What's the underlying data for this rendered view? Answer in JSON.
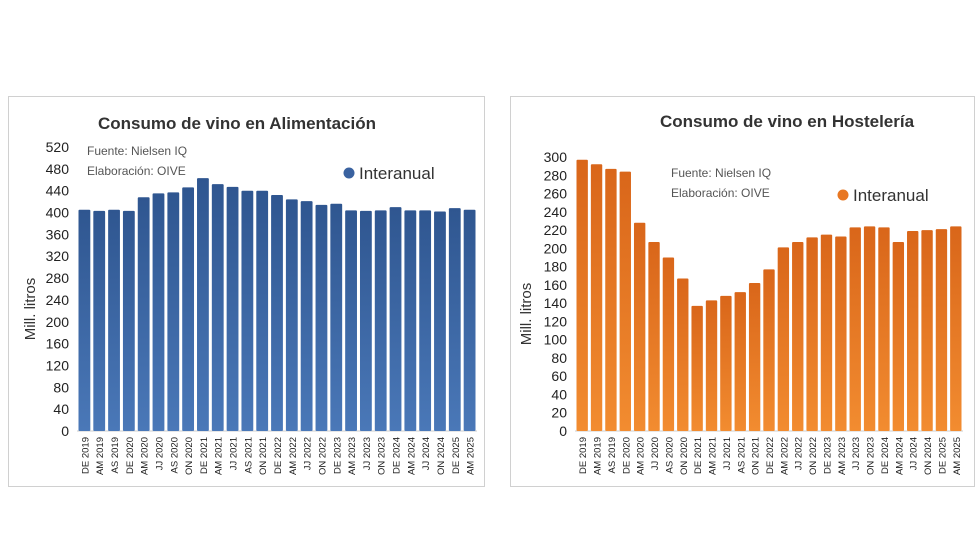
{
  "chart_data": [
    {
      "type": "bar",
      "title": "Consumo de vino en Alimentación",
      "ylabel": "Mill. litros",
      "source": "Fuente: Nielsen IQ",
      "author": "Elaboración: OIVE",
      "legend": "Interanual",
      "legend_position": "top-right",
      "color": "#3a62a0",
      "ylim": [
        0,
        520
      ],
      "yticks": [
        0,
        40,
        80,
        120,
        160,
        200,
        240,
        280,
        320,
        360,
        400,
        440,
        480,
        520
      ],
      "categories": [
        "DE 2019",
        "AM 2019",
        "AS 2019",
        "DE 2020",
        "AM 2020",
        "JJ 2020",
        "AS 2020",
        "ON 2020",
        "DE 2021",
        "AM 2021",
        "JJ 2021",
        "AS 2021",
        "ON 2021",
        "DE 2022",
        "AM 2022",
        "JJ 2022",
        "ON 2022",
        "DE 2023",
        "AM 2023",
        "JJ 2023",
        "ON 2023",
        "DE 2024",
        "AM 2024",
        "JJ 2024",
        "ON 2024",
        "DE 2025",
        "AM 2025"
      ],
      "values": [
        405,
        403,
        405,
        403,
        428,
        435,
        437,
        446,
        463,
        452,
        447,
        440,
        440,
        432,
        424,
        421,
        414,
        416,
        404,
        403,
        404,
        410,
        404,
        404,
        402,
        408,
        405
      ]
    },
    {
      "type": "bar",
      "title": "Consumo de vino en Hostelería",
      "ylabel": "Mill. litros",
      "source": "Fuente: Nielsen IQ",
      "author": "Elaboración: OIVE",
      "legend": "Interanual",
      "legend_position": "top-right",
      "color": "#e87722",
      "ylim": [
        0,
        300
      ],
      "yticks": [
        0,
        20,
        40,
        60,
        80,
        100,
        120,
        140,
        160,
        180,
        200,
        220,
        240,
        260,
        280,
        300
      ],
      "categories": [
        "DE 2019",
        "AM 2019",
        "AS 2019",
        "DE 2020",
        "AM 2020",
        "JJ 2020",
        "AS 2020",
        "ON 2020",
        "DE 2021",
        "AM 2021",
        "JJ 2021",
        "AS 2021",
        "ON 2021",
        "DE 2022",
        "AM 2022",
        "JJ 2022",
        "ON 2022",
        "DE 2023",
        "AM 2023",
        "JJ 2023",
        "ON 2023",
        "DE 2024",
        "AM 2024",
        "JJ 2024",
        "ON 2024",
        "DE 2025",
        "AM 2025"
      ],
      "values": [
        297,
        292,
        287,
        284,
        228,
        207,
        190,
        167,
        137,
        143,
        148,
        152,
        162,
        177,
        201,
        207,
        212,
        215,
        213,
        223,
        224,
        223,
        207,
        219,
        220,
        221,
        224
      ]
    }
  ]
}
